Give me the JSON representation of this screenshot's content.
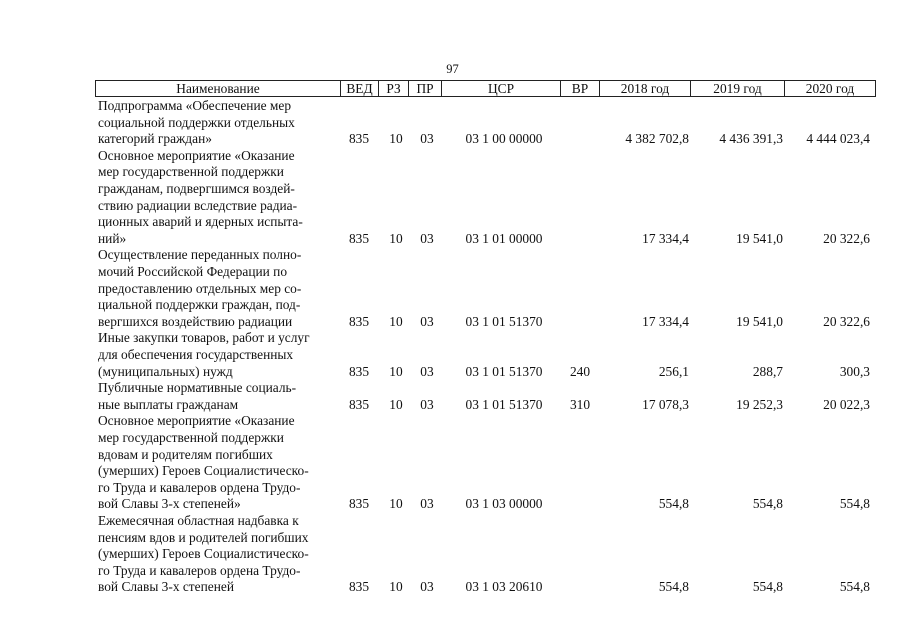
{
  "page_number": "97",
  "columns": {
    "name": "Наименование",
    "ved": "ВЕД",
    "rz": "РЗ",
    "pr": "ПР",
    "csr": "ЦСР",
    "vr": "ВР",
    "y2018": "2018 год",
    "y2019": "2019 год",
    "y2020": "2020 год"
  },
  "rows": [
    {
      "name_lines": [
        "Подпрограмма «Обеспечение мер",
        "социальной поддержки отдельных",
        "категорий граждан»"
      ],
      "ved": "835",
      "rz": "10",
      "pr": "03",
      "csr": "03 1 00 00000",
      "vr": "",
      "y2018": "4 382 702,8",
      "y2019": "4 436 391,3",
      "y2020": "4 444 023,4"
    },
    {
      "name_lines": [
        "Основное мероприятие «Оказание",
        "мер государственной поддержки",
        "гражданам, подвергшимся воздей-",
        "ствию радиации вследствие радиа-",
        "ционных аварий и ядерных испыта-",
        "ний»"
      ],
      "ved": "835",
      "rz": "10",
      "pr": "03",
      "csr": "03 1 01 00000",
      "vr": "",
      "y2018": "17 334,4",
      "y2019": "19 541,0",
      "y2020": "20 322,6"
    },
    {
      "name_lines": [
        "Осуществление переданных полно-",
        "мочий Российской Федерации по",
        "предоставлению отдельных мер со-",
        "циальной поддержки граждан, под-",
        "вергшихся воздействию радиации"
      ],
      "ved": "835",
      "rz": "10",
      "pr": "03",
      "csr": "03 1 01 51370",
      "vr": "",
      "y2018": "17 334,4",
      "y2019": "19 541,0",
      "y2020": "20 322,6"
    },
    {
      "name_lines": [
        "Иные закупки товаров, работ и услуг",
        "для обеспечения государственных",
        "(муниципальных) нужд"
      ],
      "ved": "835",
      "rz": "10",
      "pr": "03",
      "csr": "03 1 01 51370",
      "vr": "240",
      "y2018": "256,1",
      "y2019": "288,7",
      "y2020": "300,3"
    },
    {
      "name_lines": [
        "Публичные нормативные социаль-",
        "ные выплаты гражданам"
      ],
      "ved": "835",
      "rz": "10",
      "pr": "03",
      "csr": "03 1 01 51370",
      "vr": "310",
      "y2018": "17 078,3",
      "y2019": "19 252,3",
      "y2020": "20 022,3"
    },
    {
      "name_lines": [
        "Основное мероприятие «Оказание",
        "мер государственной поддержки",
        "вдовам и родителям погибших",
        "(умерших) Героев Социалистическо-",
        "го Труда и кавалеров ордена Трудо-",
        "вой Славы 3-х степеней»"
      ],
      "ved": "835",
      "rz": "10",
      "pr": "03",
      "csr": "03 1 03 00000",
      "vr": "",
      "y2018": "554,8",
      "y2019": "554,8",
      "y2020": "554,8"
    },
    {
      "name_lines": [
        "Ежемесячная областная надбавка к",
        "пенсиям вдов и родителей погибших",
        "(умерших) Героев Социалистическо-",
        "го Труда и кавалеров ордена Трудо-",
        "вой Славы 3-х степеней"
      ],
      "ved": "835",
      "rz": "10",
      "pr": "03",
      "csr": "03 1 03 20610",
      "vr": "",
      "y2018": "554,8",
      "y2019": "554,8",
      "y2020": "554,8"
    }
  ]
}
